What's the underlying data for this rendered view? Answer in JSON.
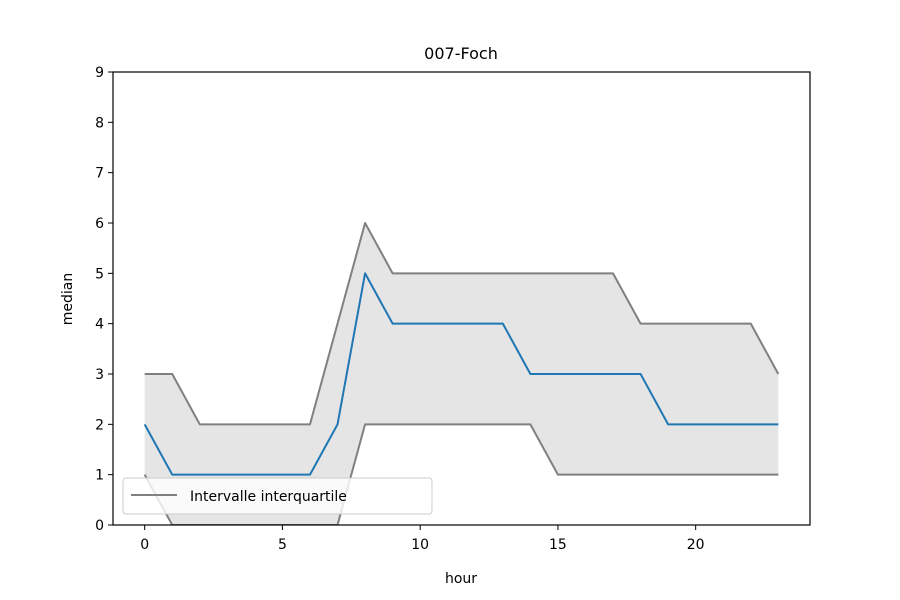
{
  "chart_data": {
    "type": "line",
    "title": "007-Foch",
    "xlabel": "hour",
    "ylabel": "median",
    "xlim": [
      -1.15,
      24.15
    ],
    "ylim": [
      0,
      9
    ],
    "xticks": [
      0,
      5,
      10,
      15,
      20
    ],
    "yticks": [
      0,
      1,
      2,
      3,
      4,
      5,
      6,
      7,
      8,
      9
    ],
    "grid": false,
    "legend_position": "lower-left",
    "legend_entries": [
      "Intervalle interquartile"
    ],
    "x": [
      0,
      1,
      2,
      3,
      4,
      5,
      6,
      7,
      8,
      9,
      10,
      11,
      12,
      13,
      14,
      15,
      16,
      17,
      18,
      19,
      20,
      21,
      22,
      23
    ],
    "series": [
      {
        "role": "median",
        "color": "#1f77b4",
        "values": [
          2,
          1,
          1,
          1,
          1,
          1,
          1,
          2,
          5,
          4,
          4,
          4,
          4,
          4,
          3,
          3,
          3,
          3,
          3,
          2,
          2,
          2,
          2,
          2
        ]
      },
      {
        "role": "q3",
        "color": "#808080",
        "values": [
          3,
          3,
          2,
          2,
          2,
          2,
          2,
          4,
          6,
          5,
          5,
          5,
          5,
          5,
          5,
          5,
          5,
          5,
          4,
          4,
          4,
          4,
          4,
          3
        ]
      },
      {
        "role": "q1",
        "color": "#808080",
        "values": [
          1,
          0,
          0,
          0,
          0,
          0,
          0,
          0,
          2,
          2,
          2,
          2,
          2,
          2,
          2,
          1,
          1,
          1,
          1,
          1,
          1,
          1,
          1,
          1
        ]
      }
    ],
    "band_color": "#e5e5e5"
  }
}
